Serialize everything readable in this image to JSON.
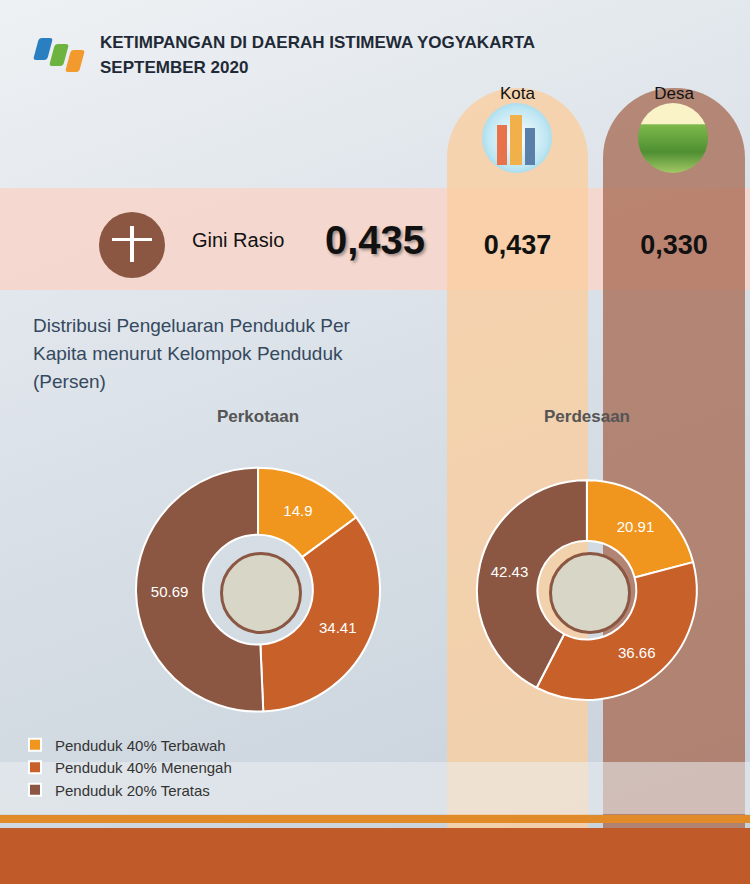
{
  "header": {
    "title": [
      "KETIMPANGAN DI DAERAH ISTIMEWA YOGYAKARTA",
      "SEPTEMBER 2020"
    ]
  },
  "gini": {
    "label": "Gini Rasio",
    "total": "0,435",
    "kota": {
      "label": "Kota",
      "value": "0,437"
    },
    "desa": {
      "label": "Desa",
      "value": "0,330"
    }
  },
  "section_title": [
    "Distribusi Pengeluaran Penduduk Per",
    "Kapita menurut Kelompok Penduduk",
    "(Persen)"
  ],
  "chart_data": [
    {
      "type": "pie",
      "title": "Perkotaan",
      "categories": [
        "Penduduk 40% Terbawah",
        "Penduduk 40% Menengah",
        "Penduduk 20% Teratas"
      ],
      "values": [
        14.9,
        34.41,
        50.69
      ],
      "colors": [
        "#f0961e",
        "#c8602a",
        "#8b5742"
      ],
      "data_labels": true,
      "legend": "bottom left"
    },
    {
      "type": "pie",
      "title": "Perdesaan",
      "categories": [
        "Penduduk 40% Terbawah",
        "Penduduk 40% Menengah",
        "Penduduk 20% Teratas"
      ],
      "values": [
        20.91,
        36.66,
        42.43
      ],
      "colors": [
        "#f0961e",
        "#c8602a",
        "#8b5742"
      ],
      "data_labels": true
    }
  ]
}
